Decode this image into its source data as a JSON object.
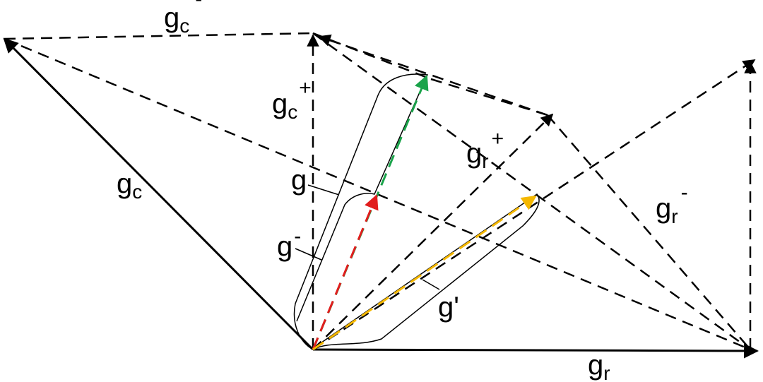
{
  "colors": {
    "stroke": "#000000",
    "green_vector": "#1aa34a",
    "red_vector": "#e11d1d",
    "yellow_vector": "#f5b800"
  },
  "labels": {
    "gc_top": {
      "base": "g",
      "sub": "c",
      "sup": "-"
    },
    "gc_plus": {
      "base": "g",
      "sub": "c",
      "sup": "+"
    },
    "gc_left": {
      "base": "g",
      "sub": "c"
    },
    "gr_plus": {
      "base": "g",
      "sub": "r",
      "sup": "+"
    },
    "gr_minus": {
      "base": "g",
      "sub": "r",
      "sup": "-"
    },
    "gr_bottom": {
      "base": "g",
      "sub": "r"
    },
    "g": "g",
    "g_minus": {
      "base": "g",
      "sup": "-"
    },
    "g_prime": "g'"
  }
}
